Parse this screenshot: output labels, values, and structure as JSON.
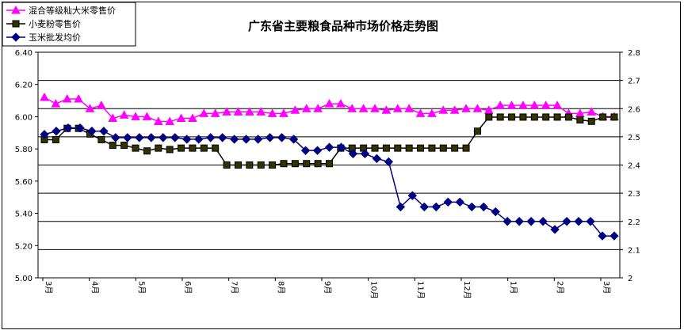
{
  "chart_data": {
    "type": "line",
    "title": "广东省主要粮食品种市场价格走势图",
    "x_tick_labels": [
      "3月",
      "4月",
      "5月",
      "6月",
      "7月",
      "8月",
      "9月",
      "10月",
      "11月",
      "12月",
      "1月",
      "2月",
      "3月"
    ],
    "left_axis": {
      "ylim": [
        5.0,
        6.4
      ],
      "tick_labels": [
        "5.00",
        "5.20",
        "5.40",
        "5.60",
        "5.80",
        "6.00",
        "6.20",
        "6.40"
      ]
    },
    "right_axis": {
      "ylim": [
        2.0,
        2.8
      ],
      "tick_labels": [
        "2",
        "2.1",
        "2.2",
        "2.3",
        "2.4",
        "2.5",
        "2.6",
        "2.7",
        "2.8"
      ]
    },
    "grid": true,
    "legend_position": "top-left",
    "series": [
      {
        "name": "混合等级籼大米零售价",
        "axis": "left",
        "color": "#ff00ff",
        "marker": "triangle",
        "values": [
          6.12,
          6.08,
          6.11,
          6.11,
          6.05,
          6.07,
          5.99,
          6.01,
          6.0,
          6.0,
          5.97,
          5.97,
          5.99,
          5.99,
          6.02,
          6.02,
          6.03,
          6.03,
          6.03,
          6.03,
          6.02,
          6.02,
          6.04,
          6.05,
          6.05,
          6.08,
          6.08,
          6.05,
          6.05,
          6.05,
          6.04,
          6.05,
          6.05,
          6.02,
          6.02,
          6.04,
          6.04,
          6.05,
          6.05,
          6.04,
          6.07,
          6.07,
          6.07,
          6.07,
          6.07,
          6.07,
          6.02,
          6.02,
          6.03,
          6.0,
          6.0
        ]
      },
      {
        "name": "小麦粉零售价",
        "axis": "right",
        "color": "#000000",
        "marker": "square",
        "values": [
          2.49,
          2.49,
          2.53,
          2.53,
          2.51,
          2.49,
          2.47,
          2.47,
          2.46,
          2.45,
          2.46,
          2.455,
          2.46,
          2.46,
          2.46,
          2.46,
          2.4,
          2.4,
          2.4,
          2.4,
          2.4,
          2.405,
          2.405,
          2.405,
          2.405,
          2.405,
          2.46,
          2.46,
          2.46,
          2.46,
          2.46,
          2.46,
          2.46,
          2.46,
          2.46,
          2.46,
          2.46,
          2.46,
          2.52,
          2.57,
          2.57,
          2.57,
          2.57,
          2.57,
          2.57,
          2.57,
          2.57,
          2.56,
          2.555,
          2.57,
          2.57
        ]
      },
      {
        "name": "玉米批发均价",
        "axis": "left",
        "color": "#000080",
        "marker": "diamond",
        "values": [
          5.89,
          5.91,
          5.93,
          5.93,
          5.91,
          5.91,
          5.87,
          5.87,
          5.87,
          5.87,
          5.87,
          5.87,
          5.86,
          5.86,
          5.87,
          5.87,
          5.86,
          5.86,
          5.86,
          5.87,
          5.87,
          5.86,
          5.79,
          5.79,
          5.81,
          5.81,
          5.77,
          5.77,
          5.74,
          5.72,
          5.44,
          5.51,
          5.44,
          5.44,
          5.47,
          5.47,
          5.44,
          5.44,
          5.41,
          5.35,
          5.35,
          5.35,
          5.35,
          5.3,
          5.35,
          5.35,
          5.35,
          5.26,
          5.26
        ]
      }
    ]
  }
}
